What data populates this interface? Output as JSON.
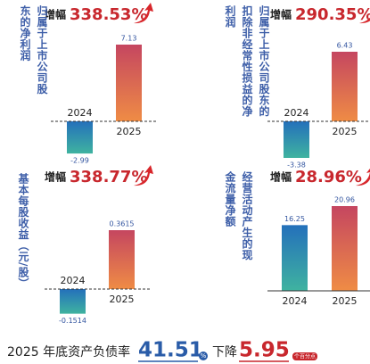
{
  "chart_data": [
    {
      "type": "bar",
      "title": "归属于上市公司股东的净利润",
      "annotation_label": "增幅",
      "annotation": "338.53%",
      "categories": [
        "2024",
        "2025"
      ],
      "values": [
        -2.99,
        7.13
      ],
      "colors": [
        "#2a78bd",
        "#c94a5e"
      ]
    },
    {
      "type": "bar",
      "title": "归属于上市公司股东的扣除非经常性损益的净利润",
      "annotation_label": "增幅",
      "annotation": "290.35%",
      "categories": [
        "2024",
        "2025"
      ],
      "values": [
        -3.38,
        6.43
      ],
      "colors": [
        "#2a78bd",
        "#c94a5e"
      ]
    },
    {
      "type": "bar",
      "title": "基本每股收益（元/股）",
      "annotation_label": "增幅",
      "annotation": "338.77%",
      "categories": [
        "2024",
        "2025"
      ],
      "values": [
        -0.1514,
        0.3615
      ],
      "colors": [
        "#2a78bd",
        "#c94a5e"
      ]
    },
    {
      "type": "bar",
      "title": "经营活动产生的现金流量净额",
      "annotation_label": "增幅",
      "annotation": "28.96%",
      "categories": [
        "2024",
        "2025"
      ],
      "values": [
        16.25,
        20.96
      ],
      "colors": [
        "#2a78bd",
        "#c94a5e"
      ]
    }
  ],
  "footer": {
    "text": "2025 年底资产负债率",
    "value": 41.51,
    "unit": "%",
    "change_label": "下降",
    "change": 5.95,
    "change_unit": "个百分点"
  }
}
